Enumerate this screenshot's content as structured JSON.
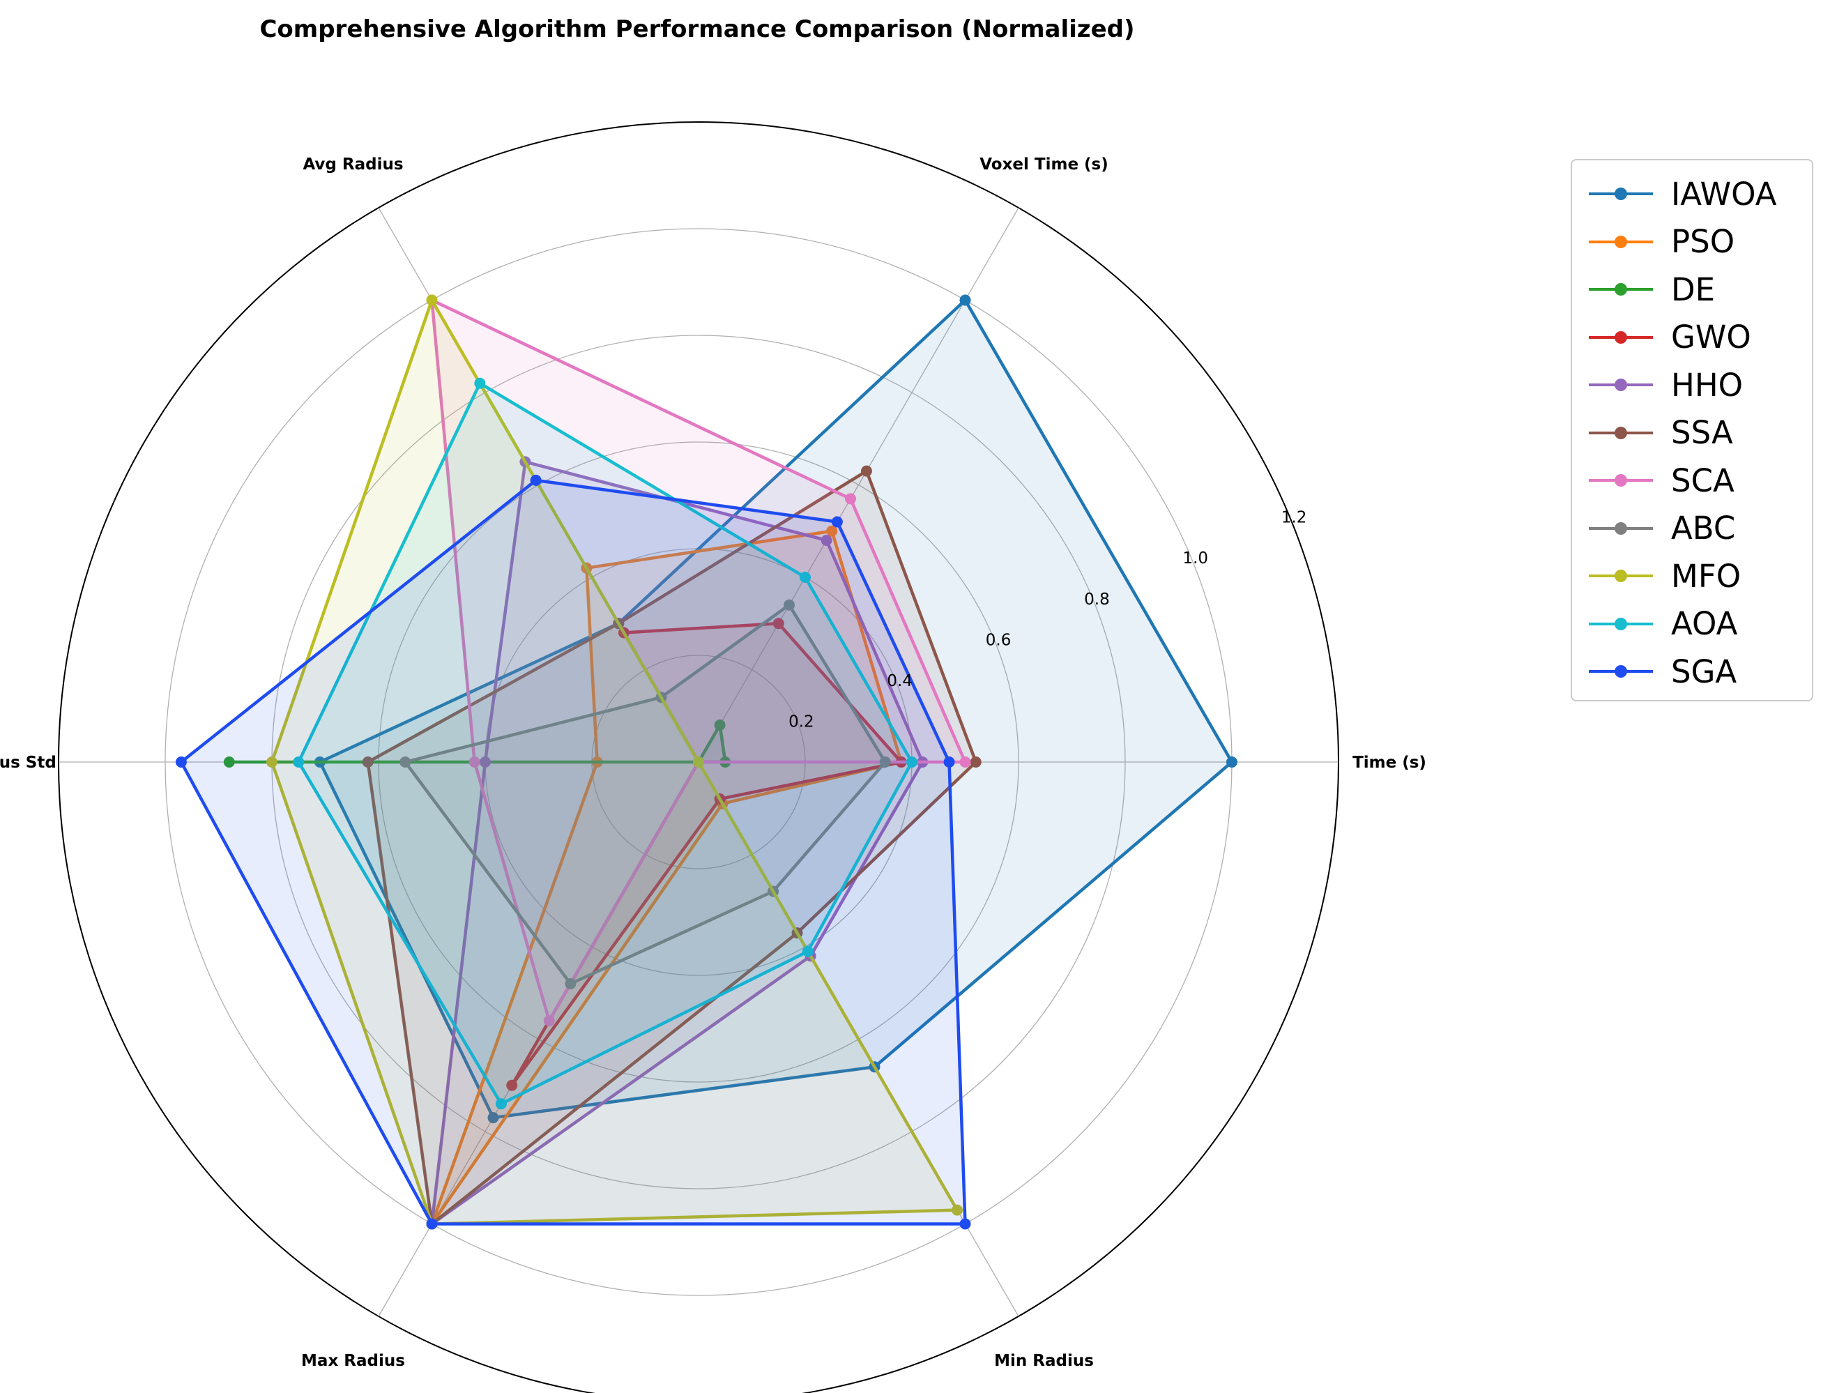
{
  "chart_data": {
    "type": "radar",
    "title": "Comprehensive Algorithm Performance Comparison (Normalized)",
    "axes": [
      "Time (s)",
      "Voxel Time (s)",
      "Avg Radius",
      "Radius Std",
      "Max Radius",
      "Min Radius"
    ],
    "rlim": [
      0,
      1.2
    ],
    "rticks": [
      "0.2",
      "0.4",
      "0.6",
      "0.8",
      "1.0",
      "1.2"
    ],
    "grid": true,
    "legend_position": "upper right outside",
    "series": [
      {
        "name": "IAWOA",
        "color": "#1f77b4",
        "values": [
          1.0,
          1.0,
          0.3,
          0.71,
          0.77,
          0.66
        ]
      },
      {
        "name": "PSO",
        "color": "#ff7f0e",
        "values": [
          0.38,
          0.5,
          0.42,
          0.19,
          1.0,
          0.09
        ]
      },
      {
        "name": "DE",
        "color": "#2ca02c",
        "values": [
          0.05,
          0.08,
          0.0,
          0.88,
          0.0,
          0.0
        ]
      },
      {
        "name": "GWO",
        "color": "#d62728",
        "values": [
          0.38,
          0.3,
          0.28,
          0.0,
          0.7,
          0.08
        ]
      },
      {
        "name": "HHO",
        "color": "#9467bd",
        "values": [
          0.42,
          0.48,
          0.65,
          0.4,
          1.0,
          0.42
        ]
      },
      {
        "name": "SSA",
        "color": "#8c564b",
        "values": [
          0.52,
          0.63,
          0.3,
          0.62,
          1.0,
          0.37
        ]
      },
      {
        "name": "SCA",
        "color": "#e377c2",
        "values": [
          0.5,
          0.57,
          1.0,
          0.42,
          0.56,
          0.0
        ]
      },
      {
        "name": "ABC",
        "color": "#7f7f7f",
        "values": [
          0.35,
          0.34,
          0.14,
          0.55,
          0.48,
          0.28
        ]
      },
      {
        "name": "MFO",
        "color": "#bcbd22",
        "values": [
          0.0,
          0.0,
          1.0,
          0.8,
          1.0,
          0.97
        ]
      },
      {
        "name": "AOA",
        "color": "#17becf",
        "values": [
          0.4,
          0.4,
          0.82,
          0.75,
          0.74,
          0.41
        ]
      },
      {
        "name": "SGA",
        "color": "#1f4cf0",
        "values": [
          0.47,
          0.52,
          0.61,
          0.97,
          1.0,
          1.0
        ]
      }
    ]
  }
}
